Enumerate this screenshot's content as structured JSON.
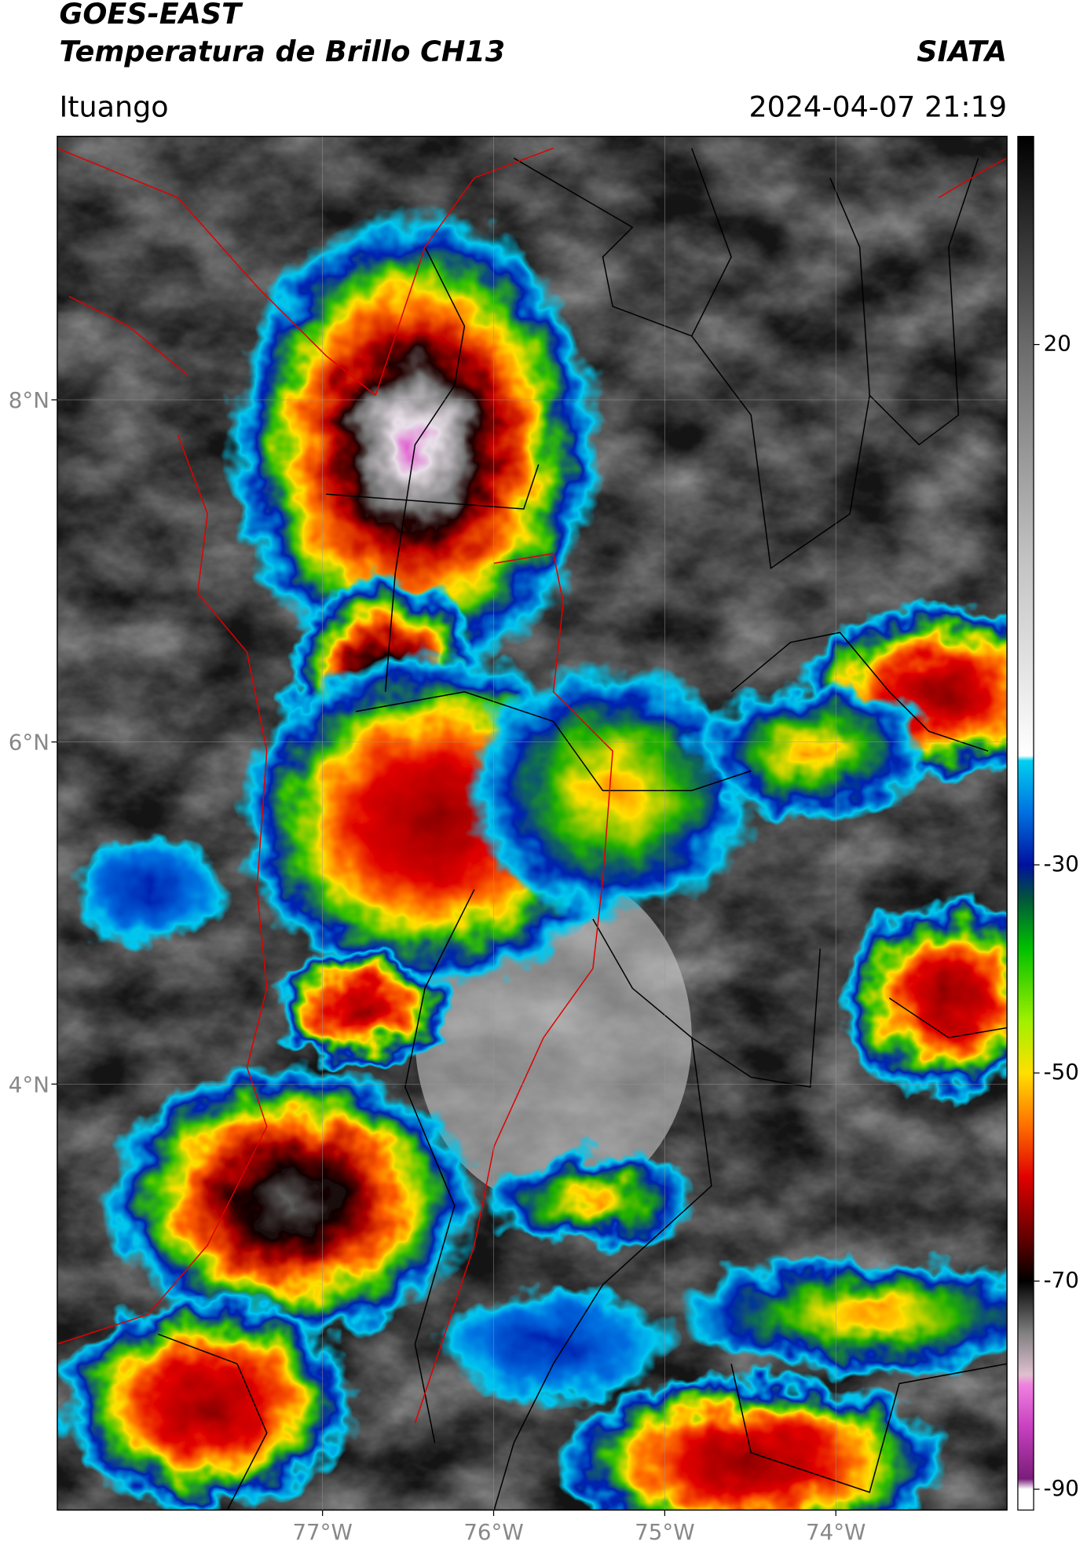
{
  "header": {
    "title": "GOES-EAST",
    "subtitle": "Temperatura de Brillo CH13",
    "source": "SIATA",
    "location": "Ituango",
    "datetime": "2024-04-07 21:19"
  },
  "map": {
    "xlim": [
      -78.55,
      -73.0
    ],
    "ylim": [
      1.51,
      9.54
    ],
    "xticks": [
      {
        "value": -77,
        "label": "77°W"
      },
      {
        "value": -76,
        "label": "76°W"
      },
      {
        "value": -75,
        "label": "75°W"
      },
      {
        "value": -74,
        "label": "74°W"
      }
    ],
    "yticks": [
      {
        "value": 4,
        "label": "4°N"
      },
      {
        "value": 6,
        "label": "6°N"
      },
      {
        "value": 8,
        "label": "8°N"
      }
    ],
    "grid": true
  },
  "colorbar": {
    "lim": [
      -92,
      40
    ],
    "ticks": [
      20,
      -30,
      -50,
      -70,
      -90
    ],
    "colormap": [
      {
        "value": -92,
        "color": "#ffffff"
      },
      {
        "value": -90,
        "color": "#ffffff"
      },
      {
        "value": -89,
        "color": "#7a1d7a"
      },
      {
        "value": -84,
        "color": "#c840c0"
      },
      {
        "value": -80,
        "color": "#f080e0"
      },
      {
        "value": -79,
        "color": "#e0c0d0"
      },
      {
        "value": -75,
        "color": "#808080"
      },
      {
        "value": -70,
        "color": "#000000"
      },
      {
        "value": -66,
        "color": "#600000"
      },
      {
        "value": -60,
        "color": "#e00000"
      },
      {
        "value": -55,
        "color": "#ff7000"
      },
      {
        "value": -50,
        "color": "#ffe000"
      },
      {
        "value": -45,
        "color": "#a0f000"
      },
      {
        "value": -38,
        "color": "#00c000"
      },
      {
        "value": -33,
        "color": "#005040"
      },
      {
        "value": -30,
        "color": "#0010a0"
      },
      {
        "value": -25,
        "color": "#0070e0"
      },
      {
        "value": -20,
        "color": "#00d0f0"
      },
      {
        "value": -19.5,
        "color": "#ffffff"
      },
      {
        "value": 0,
        "color": "#c0c0c0"
      },
      {
        "value": 20,
        "color": "#6a6a6a"
      },
      {
        "value": 40,
        "color": "#000000"
      }
    ]
  }
}
